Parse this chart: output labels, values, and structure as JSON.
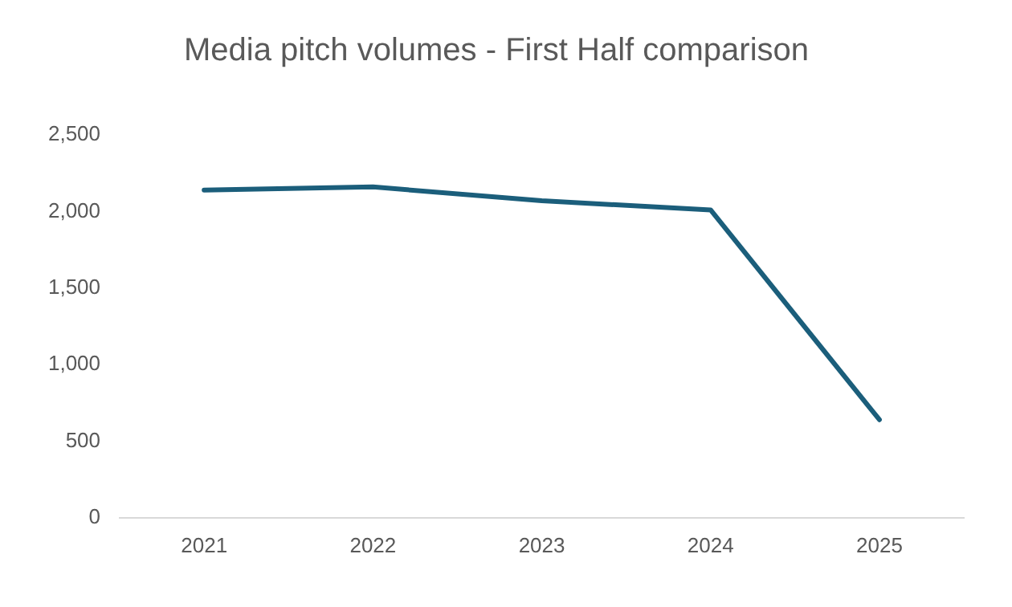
{
  "chart_data": {
    "type": "line",
    "title": "Media pitch volumes - First Half comparison",
    "categories": [
      "2021",
      "2022",
      "2023",
      "2024",
      "2025"
    ],
    "series": [
      {
        "color": "#1b5e7b",
        "values": [
          2140,
          2160,
          2070,
          2010,
          640
        ]
      }
    ],
    "ylim": [
      0,
      2500
    ],
    "yticks": [
      {
        "value": 0,
        "label": "0"
      },
      {
        "value": 500,
        "label": "500"
      },
      {
        "value": 1000,
        "label": "1,000"
      },
      {
        "value": 1500,
        "label": "1,500"
      },
      {
        "value": 2000,
        "label": "2,000"
      },
      {
        "value": 2500,
        "label": "2,500"
      }
    ],
    "grid": false,
    "legend": false,
    "marker": "none",
    "line_style": "solid"
  }
}
